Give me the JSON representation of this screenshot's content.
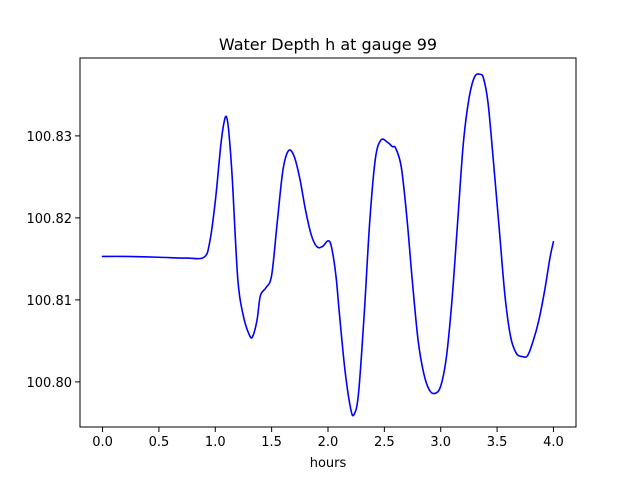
{
  "chart_data": {
    "type": "line",
    "title": "Water Depth h at gauge 99",
    "xlabel": "hours",
    "ylabel": "",
    "xlim": [
      -0.2,
      4.2
    ],
    "ylim": [
      100.7945,
      100.8395
    ],
    "xticks": [
      0.0,
      0.5,
      1.0,
      1.5,
      2.0,
      2.5,
      3.0,
      3.5,
      4.0
    ],
    "xtick_labels": [
      "0.0",
      "0.5",
      "1.0",
      "1.5",
      "2.0",
      "2.5",
      "3.0",
      "3.5",
      "4.0"
    ],
    "yticks": [
      100.8,
      100.81,
      100.82,
      100.83
    ],
    "ytick_labels": [
      "100.80",
      "100.81",
      "100.82",
      "100.83"
    ],
    "grid": false,
    "series": [
      {
        "color": "#0000ff",
        "x": [
          0.0,
          0.2,
          0.5,
          0.75,
          0.9,
          0.95,
          1.0,
          1.05,
          1.08,
          1.1,
          1.12,
          1.15,
          1.2,
          1.25,
          1.3,
          1.33,
          1.37,
          1.4,
          1.45,
          1.5,
          1.55,
          1.6,
          1.65,
          1.7,
          1.75,
          1.8,
          1.85,
          1.9,
          1.95,
          2.0,
          2.03,
          2.07,
          2.1,
          2.15,
          2.2,
          2.23,
          2.27,
          2.32,
          2.37,
          2.42,
          2.47,
          2.53,
          2.57,
          2.6,
          2.65,
          2.7,
          2.75,
          2.8,
          2.85,
          2.9,
          2.95,
          3.0,
          3.05,
          3.1,
          3.15,
          3.2,
          3.25,
          3.3,
          3.35,
          3.38,
          3.42,
          3.47,
          3.52,
          3.57,
          3.62,
          3.67,
          3.72,
          3.77,
          3.82,
          3.87,
          3.92,
          3.97,
          4.0
        ],
        "y": [
          100.8153,
          100.8153,
          100.8152,
          100.8151,
          100.8152,
          100.817,
          100.822,
          100.829,
          100.8318,
          100.8323,
          100.8305,
          100.825,
          100.8125,
          100.808,
          100.8058,
          100.8055,
          100.8075,
          100.8105,
          100.8115,
          100.813,
          100.8195,
          100.8258,
          100.8282,
          100.8275,
          100.8248,
          100.821,
          100.818,
          100.8165,
          100.8165,
          100.8172,
          100.8165,
          100.813,
          100.8085,
          100.8015,
          100.7968,
          100.796,
          100.7985,
          100.808,
          100.8195,
          100.8272,
          100.8295,
          100.8292,
          100.8287,
          100.8285,
          100.8262,
          100.82,
          100.812,
          100.805,
          100.801,
          100.799,
          100.7986,
          100.7995,
          100.803,
          100.81,
          100.8195,
          100.829,
          100.8345,
          100.8372,
          100.8375,
          100.837,
          100.834,
          100.8265,
          100.8185,
          100.8105,
          100.8055,
          100.8035,
          100.8031,
          100.8032,
          100.805,
          100.8075,
          100.811,
          100.8152,
          100.8171
        ]
      }
    ]
  }
}
